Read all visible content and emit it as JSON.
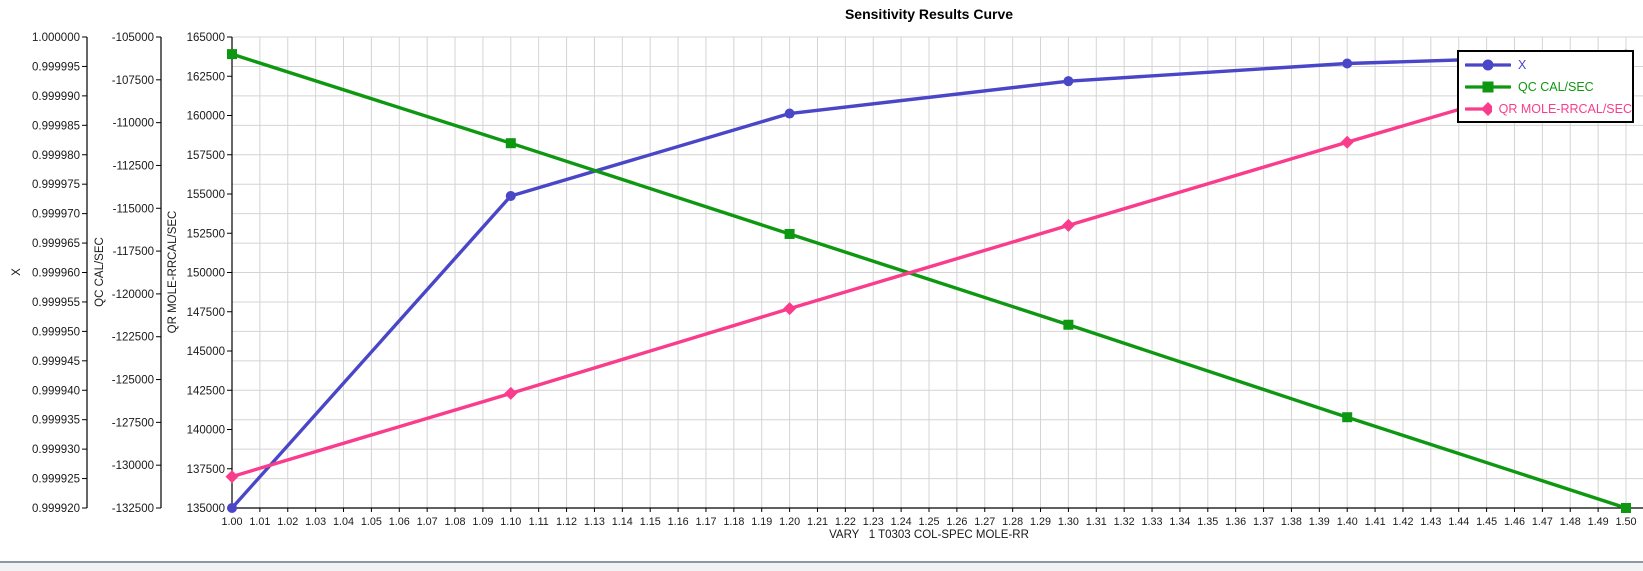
{
  "title": "Sensitivity Results Curve",
  "chart_data": {
    "type": "line",
    "title": "Sensitivity Results Curve",
    "xlabel": "VARY   1 T0303 COL-SPEC MOLE-RR",
    "grid": true,
    "gridline_color": "#d4d4d4",
    "axis_color": "#000000",
    "tick_label_color": "#1a1a1a",
    "legend_position": "top-right",
    "x": [
      1.0,
      1.1,
      1.2,
      1.3,
      1.4,
      1.5
    ],
    "x_axis": {
      "min": 1.0,
      "max": 1.5,
      "tick_step": 0.01,
      "tick_labels": [
        "1.00",
        "1.01",
        "1.02",
        "1.03",
        "1.04",
        "1.05",
        "1.06",
        "1.07",
        "1.08",
        "1.09",
        "1.10",
        "1.11",
        "1.12",
        "1.13",
        "1.14",
        "1.15",
        "1.16",
        "1.17",
        "1.18",
        "1.19",
        "1.20",
        "1.21",
        "1.22",
        "1.23",
        "1.24",
        "1.25",
        "1.26",
        "1.27",
        "1.28",
        "1.29",
        "1.30",
        "1.31",
        "1.32",
        "1.33",
        "1.34",
        "1.35",
        "1.36",
        "1.37",
        "1.38",
        "1.39",
        "1.40",
        "1.41",
        "1.42",
        "1.43",
        "1.44",
        "1.45",
        "1.46",
        "1.47",
        "1.48",
        "1.49",
        "1.50"
      ]
    },
    "y_axes": [
      {
        "id": "x",
        "label": "X",
        "min": 0.99992,
        "max": 1.0,
        "tick_step": 5e-06,
        "tick_labels": [
          "1.000000",
          "0.999995",
          "0.999990",
          "0.999985",
          "0.999980",
          "0.999975",
          "0.999970",
          "0.999965",
          "0.999960",
          "0.999955",
          "0.999950",
          "0.999945",
          "0.999940",
          "0.999935",
          "0.999930",
          "0.999925",
          "0.999920"
        ]
      },
      {
        "id": "qc",
        "label": "QC CAL/SEC",
        "min": -132500,
        "max": -105000,
        "tick_step": 2500,
        "tick_labels": [
          "-105000",
          "-107500",
          "-110000",
          "-112500",
          "-115000",
          "-117500",
          "-120000",
          "-122500",
          "-125000",
          "-127500",
          "-130000",
          "-132500"
        ]
      },
      {
        "id": "qr",
        "label": "QR MOLE-RRCAL/SEC",
        "min": 135000,
        "max": 165000,
        "tick_step": 2500,
        "tick_labels": [
          "165000",
          "162500",
          "160000",
          "157500",
          "155000",
          "152500",
          "150000",
          "147500",
          "145000",
          "142500",
          "140000",
          "137500",
          "135000"
        ]
      }
    ],
    "series": [
      {
        "name": "X",
        "axis": "x",
        "color": "#4a46c8",
        "marker": "circle",
        "values": [
          0.99992,
          0.999973,
          0.999987,
          0.9999925,
          0.9999955,
          0.999997
        ]
      },
      {
        "name": "QC CAL/SEC",
        "axis": "qc",
        "color": "#0e9711",
        "marker": "square",
        "values": [
          -106000,
          -111200,
          -116500,
          -121800,
          -127200,
          -132500
        ]
      },
      {
        "name": "QR MOLE-RRCAL/SEC",
        "axis": "qr",
        "color": "#fa3c8c",
        "marker": "diamond",
        "values": [
          137000,
          142300,
          147700,
          153000,
          158300,
          163500
        ]
      }
    ]
  },
  "footer": {
    "divider_color": "#8e98a2",
    "strip_color": "#f2f3f5"
  }
}
